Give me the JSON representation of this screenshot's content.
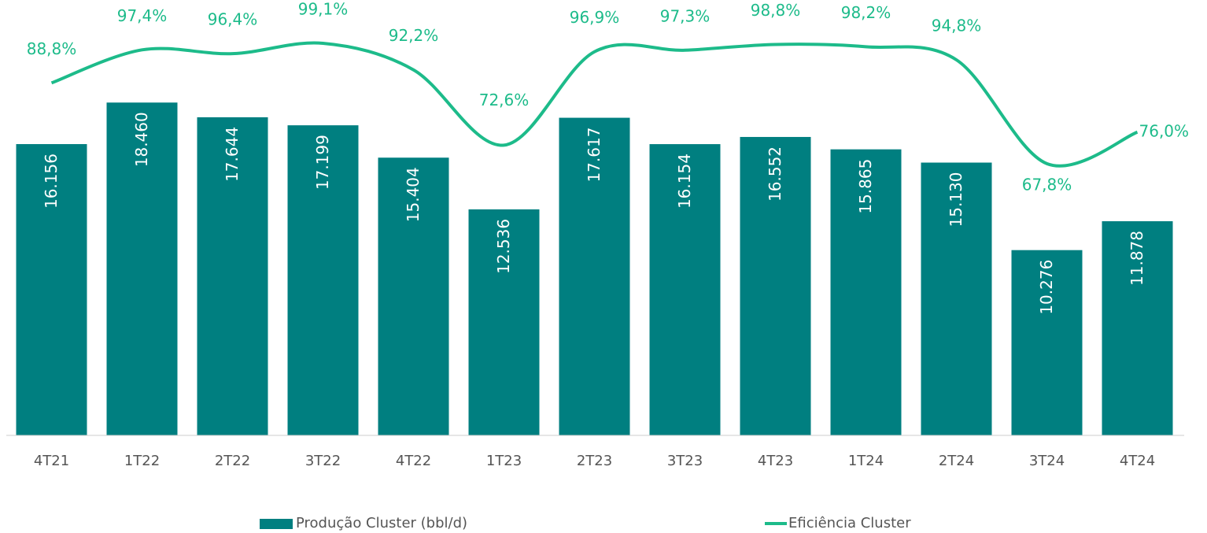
{
  "chart_data": {
    "type": "bar+line",
    "categories": [
      "4T21",
      "1T22",
      "2T22",
      "3T22",
      "4T22",
      "1T23",
      "2T23",
      "3T23",
      "4T23",
      "1T24",
      "2T24",
      "3T24",
      "4T24"
    ],
    "ylim": [
      0,
      20000
    ],
    "y2lim": [
      0,
      100
    ],
    "series": [
      {
        "name": "Produção Cluster (bbl/d)",
        "type": "bar",
        "color": "#007f80",
        "values": [
          16156,
          18460,
          17644,
          17199,
          15404,
          12536,
          17617,
          16154,
          16552,
          15865,
          15130,
          10276,
          11878
        ],
        "value_labels": [
          "16.156",
          "18.460",
          "17.644",
          "17.199",
          "15.404",
          "12.536",
          "17.617",
          "16.154",
          "16.552",
          "15.865",
          "15.130",
          "10.276",
          "11.878"
        ]
      },
      {
        "name": "Eficiência Cluster",
        "type": "line",
        "axis": "y2",
        "color": "#1dbb8a",
        "values": [
          88.8,
          97.4,
          96.4,
          99.1,
          92.2,
          72.6,
          96.9,
          97.3,
          98.8,
          98.2,
          94.8,
          67.8,
          76.0
        ],
        "value_labels": [
          "88,8%",
          "97,4%",
          "96,4%",
          "99,1%",
          "92,2%",
          "72,6%",
          "96,9%",
          "97,3%",
          "98,8%",
          "98,2%",
          "94,8%",
          "67,8%",
          "76,0%"
        ]
      }
    ],
    "legend": "bottom"
  }
}
